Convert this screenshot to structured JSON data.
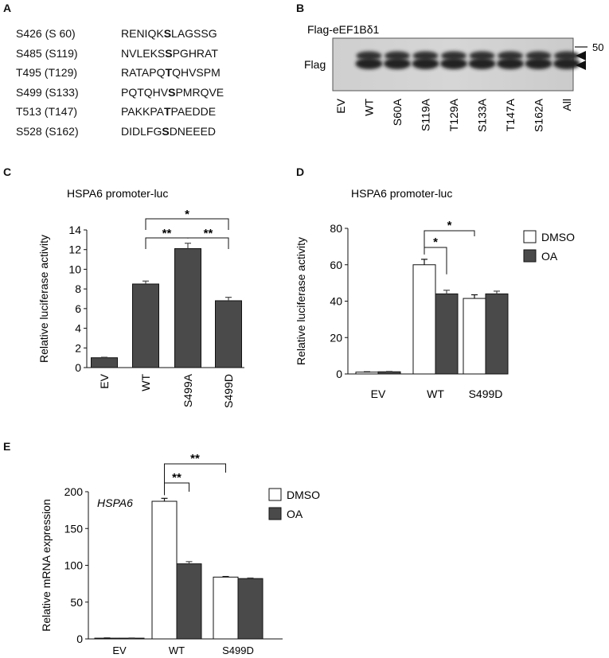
{
  "panels": {
    "A": "A",
    "B": "B",
    "C": "C",
    "D": "D",
    "E": "E"
  },
  "panel_a": {
    "rows": [
      {
        "site": "S426 (S 60)",
        "pre": "RENIQK",
        "bold": "S",
        "post": "LAGSSG"
      },
      {
        "site": "S485 (S119)",
        "pre": "NVLEKS",
        "bold": "S",
        "post": "PGHRAT"
      },
      {
        "site": "T495 (T129)",
        "pre": "RATAPQ",
        "bold": "T",
        "post": "QHVSPM"
      },
      {
        "site": "S499 (S133)",
        "pre": "PQTQHV",
        "bold": "S",
        "post": "PMRQVE"
      },
      {
        "site": "T513 (T147)",
        "pre": "PAKKPA",
        "bold": "T",
        "post": "PAEDDE"
      },
      {
        "site": "S528 (S162)",
        "pre": "DIDLFG",
        "bold": "S",
        "post": "DNEEED"
      }
    ]
  },
  "panel_b": {
    "title": "Flag-eEF1Bδ1",
    "row_label": "Flag",
    "marker": "50",
    "lanes": [
      "EV",
      "WT",
      "S60A",
      "S119A",
      "T129A",
      "S133A",
      "T147A",
      "S162A",
      "All"
    ]
  },
  "chart_data": [
    {
      "id": "C",
      "type": "bar",
      "title": "HSPA6 promoter-luc",
      "xlabel": "",
      "ylabel": "Relative luciferase activity",
      "categories": [
        "EV",
        "WT",
        "S499A",
        "S499D"
      ],
      "values": [
        1.0,
        8.5,
        12.1,
        6.8
      ],
      "errors": [
        0.05,
        0.3,
        0.55,
        0.35
      ],
      "ylim": [
        0,
        14
      ],
      "yticks": [
        "0",
        "2",
        "4",
        "6",
        "8",
        "10",
        "12",
        "14"
      ],
      "bar_color": "#4a4a4a",
      "significance": [
        {
          "from": "WT",
          "to": "S499A",
          "label": "**"
        },
        {
          "from": "S499A",
          "to": "S499D",
          "label": "**"
        },
        {
          "from": "WT",
          "to": "S499D",
          "label": "*"
        }
      ]
    },
    {
      "id": "D",
      "type": "bar",
      "title": "HSPA6 promoter-luc",
      "xlabel": "",
      "ylabel": "Relative luciferase activity",
      "categories": [
        "EV",
        "WT",
        "S499D"
      ],
      "series": [
        {
          "name": "DMSO",
          "color": "#ffffff",
          "values": [
            1.0,
            60,
            41.5
          ],
          "errors": [
            0.2,
            3.0,
            2.0
          ]
        },
        {
          "name": "OA",
          "color": "#4a4a4a",
          "values": [
            1.2,
            44,
            44
          ],
          "errors": [
            0.2,
            2.0,
            1.5
          ]
        }
      ],
      "ylim": [
        0,
        80
      ],
      "yticks": [
        "0",
        "20",
        "40",
        "60",
        "80"
      ],
      "legend": "top-right",
      "significance": [
        {
          "from": "WT-DMSO",
          "to": "WT-OA",
          "label": "*"
        },
        {
          "from": "WT-DMSO",
          "to": "S499D-DMSO",
          "label": "*"
        }
      ]
    },
    {
      "id": "E",
      "type": "bar",
      "title": "HSPA6",
      "xlabel": "",
      "ylabel": "Relative mRNA expression",
      "categories": [
        "EV",
        "WT",
        "S499D"
      ],
      "series": [
        {
          "name": "DMSO",
          "color": "#ffffff",
          "values": [
            1.0,
            187,
            84
          ],
          "errors": [
            0.3,
            4.0,
            0.8
          ]
        },
        {
          "name": "OA",
          "color": "#4a4a4a",
          "values": [
            1.0,
            102,
            82
          ],
          "errors": [
            0.3,
            3.0,
            0.8
          ]
        }
      ],
      "ylim": [
        0,
        200
      ],
      "yticks": [
        "0",
        "50",
        "100",
        "150",
        "200"
      ],
      "legend": "top-right",
      "significance": [
        {
          "from": "WT-DMSO",
          "to": "WT-OA",
          "label": "**"
        },
        {
          "from": "WT-DMSO",
          "to": "S499D-DMSO",
          "label": "**"
        }
      ]
    }
  ]
}
